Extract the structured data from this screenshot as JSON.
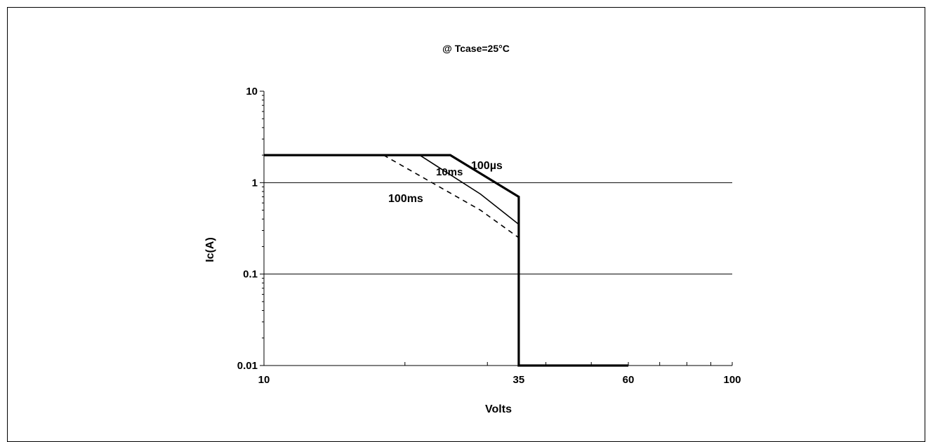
{
  "chart_data": {
    "type": "line",
    "title": "@ Tcase=25°C",
    "xlabel": "Volts",
    "ylabel": "Ic(A)",
    "x_scale": "log",
    "y_scale": "log",
    "xlim": [
      10,
      100
    ],
    "ylim": [
      0.01,
      10
    ],
    "x_ticks": [
      "10",
      "35",
      "60",
      "100"
    ],
    "x_tick_values": [
      10,
      35,
      60,
      100
    ],
    "y_ticks": [
      "10",
      "1",
      "0.1",
      "0.01"
    ],
    "y_tick_values": [
      10,
      1,
      0.1,
      0.01
    ],
    "grid": "horizontal major",
    "series": [
      {
        "name": "100µs",
        "style": "solid-thick",
        "x": [
          10,
          25,
          35,
          35,
          60
        ],
        "y": [
          2,
          2,
          0.7,
          0.01,
          0.01
        ]
      },
      {
        "name": "10ms",
        "style": "solid-thin",
        "x": [
          10,
          21.5,
          29,
          35
        ],
        "y": [
          2,
          2,
          0.75,
          0.35
        ]
      },
      {
        "name": "100ms",
        "style": "dashed",
        "x": [
          18,
          29,
          35
        ],
        "y": [
          2,
          0.5,
          0.25
        ]
      }
    ],
    "annotations": [
      "100µs",
      "10ms",
      "100ms"
    ]
  }
}
